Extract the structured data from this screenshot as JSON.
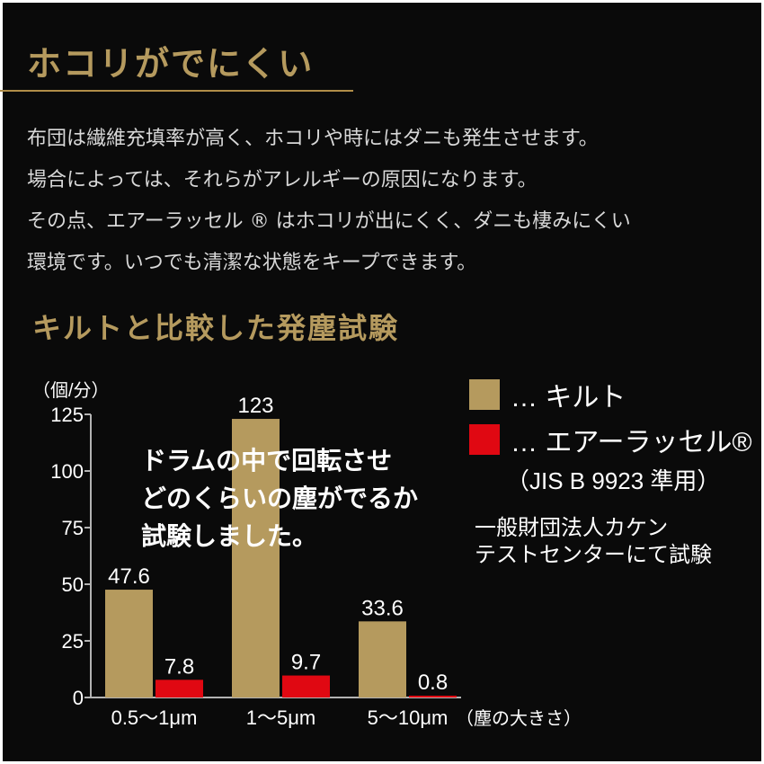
{
  "header": {
    "title": "ホコリがでにくい"
  },
  "intro": {
    "lines": [
      "布団は繊維充填率が高く、ホコリや時にはダニも発生させます。",
      "場合によっては、それらがアレルギーの原因になります。",
      "その点、エアーラッセル ® はホコリが出にくく、ダニも棲みにくい",
      "環境です。いつでも清潔な状態をキープできます。"
    ]
  },
  "chart_title": "キルトと比較した発塵試験",
  "overlay": {
    "lines": [
      "ドラムの中で回転させ",
      "どのくらいの塵がでるか",
      "試験しました。"
    ]
  },
  "legend": {
    "items": [
      {
        "label": "… キルト",
        "color": "#b59a5e"
      },
      {
        "label": "… エアーラッセル®",
        "color": "#e00812"
      }
    ],
    "note": "（JIS B 9923 準用）"
  },
  "test_note": {
    "lines": [
      "一般財団法人カケン",
      "テストセンターにて試験"
    ]
  },
  "chart_data": {
    "type": "bar",
    "ylabel": "（個/分）",
    "xlabel": "（塵の大きさ）",
    "ylim": [
      0,
      125
    ],
    "yticks": [
      0,
      25,
      50,
      75,
      100,
      125
    ],
    "categories": [
      "0.5〜1μm",
      "1〜5μm",
      "5〜10μm"
    ],
    "series": [
      {
        "name": "キルト",
        "values": [
          47.6,
          123,
          33.6
        ],
        "labels": [
          "47.6",
          "123",
          "33.6"
        ],
        "color": "#b59a5e"
      },
      {
        "name": "エアーラッセル®",
        "values": [
          7.8,
          9.7,
          0.8
        ],
        "labels": [
          "7.8",
          "9.7",
          "0.8"
        ],
        "color": "#e00812"
      }
    ],
    "grid": false,
    "legend_position": "right"
  }
}
